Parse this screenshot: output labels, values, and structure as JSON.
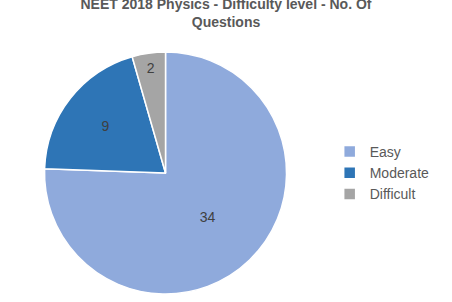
{
  "chart_data": {
    "type": "pie",
    "title": "NEET 2018 Physics - Difficulty level - No. Of Questions",
    "categories": [
      "Easy",
      "Moderate",
      "Difficult"
    ],
    "values": [
      34,
      9,
      2
    ],
    "colors": [
      "#8faadc",
      "#2e75b6",
      "#a5a5a5"
    ],
    "data_labels": true,
    "legend": "right"
  }
}
